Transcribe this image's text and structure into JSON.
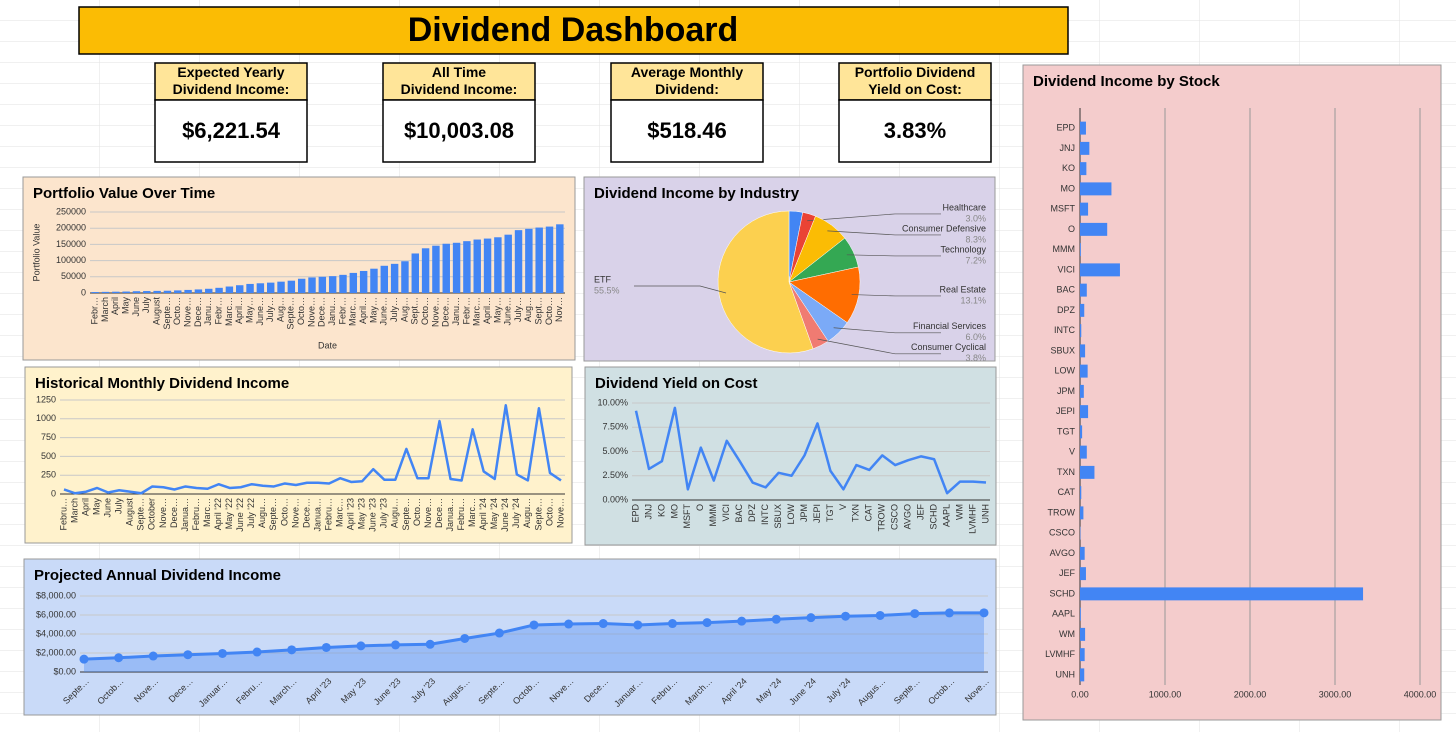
{
  "title": "Dividend Dashboard",
  "kpis": [
    {
      "label": "Expected Yearly Dividend Income:",
      "value": "$6,221.54"
    },
    {
      "label": "All Time Dividend Income:",
      "value": "$10,003.08"
    },
    {
      "label": "Average Monthly Dividend:",
      "value": "$518.46"
    },
    {
      "label": "Portfolio Dividend Yield on Cost:",
      "value": "3.83%"
    }
  ],
  "chart_data": [
    {
      "type": "bar",
      "title": "Portfolio Value Over Time",
      "ylabel": "Portfolio Value",
      "xlabel": "Date",
      "color": "#4285f4",
      "grid": true,
      "categories": [
        "Febr…",
        "March",
        "April",
        "May",
        "June",
        "July",
        "August",
        "Septe…",
        "Octo…",
        "Nove…",
        "Dece…",
        "Janu…",
        "Febr…",
        "Marc…",
        "April…",
        "May…",
        "June…",
        "July…",
        "Aug…",
        "Septe…",
        "Octo…",
        "Nove…",
        "Dece…",
        "Janu…",
        "Febr…",
        "Marc…",
        "April…",
        "May…",
        "June…",
        "July…",
        "Aug…",
        "Sept…",
        "Octo…",
        "Nove…",
        "Dece…",
        "Janu…",
        "Febr…",
        "Marc…",
        "April…",
        "May…",
        "June…",
        "July…",
        "Aug…",
        "Sept…",
        "Octo…",
        "Nov…"
      ],
      "values": [
        3000,
        3500,
        4000,
        4500,
        5500,
        6000,
        6500,
        7000,
        8000,
        9500,
        11000,
        13000,
        16000,
        20000,
        24000,
        28000,
        30000,
        32000,
        35000,
        38000,
        44000,
        48000,
        50000,
        52000,
        56000,
        62000,
        68000,
        75000,
        84000,
        90000,
        98000,
        122000,
        138000,
        146000,
        152000,
        155000,
        160000,
        165000,
        168000,
        172000,
        180000,
        194000,
        198000,
        202000,
        205000,
        212000
      ],
      "ylim": [
        0,
        250000
      ],
      "yticks": [
        0,
        50000,
        100000,
        150000,
        200000,
        250000
      ]
    },
    {
      "type": "pie",
      "title": "Dividend Income by Industry",
      "categories": [
        null,
        "Healthcare",
        "Consumer Defensive",
        "Technology",
        "Real Estate",
        "Financial Services",
        "Consumer Cyclical",
        "ETF"
      ],
      "values": [
        3.1,
        3,
        8.3,
        7.2,
        13.1,
        6,
        3.8,
        55.5
      ],
      "value_labels": [
        null,
        "3.0%",
        "8.3%",
        "7.2%",
        "13.1%",
        "6.0%",
        "3.8%",
        "55.5%"
      ],
      "colors": [
        "#4285f4",
        "#ea4335",
        "#fbbc04",
        "#34a853",
        "#ff6d01",
        "#7baaf7",
        "#f07b72",
        "#fcd04f"
      ]
    },
    {
      "type": "line",
      "title": "Historical Monthly Dividend Income",
      "color": "#4285f4",
      "grid": true,
      "categories": [
        "Febru…",
        "March",
        "April",
        "May",
        "June",
        "July",
        "August",
        "Septe…",
        "October",
        "Nove…",
        "Dece…",
        "Janua…",
        "Febru…",
        "Marc…",
        "April '22",
        "May '22",
        "June '22",
        "July '22",
        "Augu…",
        "Septe…",
        "Octo…",
        "Nove…",
        "Dece…",
        "Janua…",
        "Febru…",
        "Marc…",
        "April '23",
        "May '23",
        "June '23",
        "July '23",
        "Augu…",
        "Septe…",
        "Octo…",
        "Nove…",
        "Dece…",
        "Janua…",
        "Febru…",
        "Marc…",
        "April '24",
        "May '24",
        "June '24",
        "July '24",
        "Augu…",
        "Septe…",
        "Octo…",
        "Nove…"
      ],
      "values": [
        60,
        10,
        30,
        80,
        20,
        50,
        30,
        10,
        100,
        90,
        60,
        100,
        80,
        70,
        130,
        80,
        90,
        130,
        110,
        100,
        140,
        120,
        150,
        150,
        140,
        210,
        160,
        170,
        330,
        190,
        190,
        600,
        210,
        210,
        970,
        200,
        180,
        860,
        300,
        200,
        1180,
        260,
        180,
        1140,
        280,
        180
      ],
      "ylim": [
        0,
        1250
      ],
      "yticks": [
        0,
        250,
        500,
        750,
        1000,
        1250
      ]
    },
    {
      "type": "line",
      "title": "Dividend Yield on Cost",
      "color": "#4285f4",
      "grid": true,
      "categories": [
        "EPD",
        "JNJ",
        "KO",
        "MO",
        "MSFT",
        "O",
        "MMM",
        "VICI",
        "BAC",
        "DPZ",
        "INTC",
        "SBUX",
        "LOW",
        "JPM",
        "JEPI",
        "TGT",
        "V",
        "TXN",
        "CAT",
        "TROW",
        "CSCO",
        "AVGO",
        "JEF",
        "SCHD",
        "AAPL",
        "WM",
        "LVMHF",
        "UNH"
      ],
      "values": [
        9.2,
        3.2,
        4,
        9.5,
        1.1,
        5.4,
        2,
        6.1,
        4,
        1.8,
        1.3,
        2.8,
        2.5,
        4.6,
        7.9,
        3,
        1.1,
        3.6,
        3.1,
        4.6,
        3.6,
        4.1,
        4.5,
        4.2,
        0.7,
        1.9,
        1.9,
        1.8
      ],
      "ylim": [
        0,
        10
      ],
      "yticks": [
        {
          "value": 0,
          "label": "0.00%"
        },
        {
          "value": 2.5,
          "label": "2.50%"
        },
        {
          "value": 5,
          "label": "5.00%"
        },
        {
          "value": 7.5,
          "label": "7.50%"
        },
        {
          "value": 10,
          "label": "10.00%"
        }
      ]
    },
    {
      "type": "area",
      "title": "Projected Annual Dividend Income",
      "color": "#4285f4",
      "grid": true,
      "categories": [
        "Septe…",
        "Octob…",
        "Nove…",
        "Dece…",
        "Januar…",
        "Febru…",
        "March…",
        "April '23",
        "May '23",
        "June '23",
        "July '23",
        "Augus…",
        "Septe…",
        "Octob…",
        "Nove…",
        "Dece…",
        "Januar…",
        "Febru…",
        "March…",
        "April '24",
        "May '24",
        "June '24",
        "July '24",
        "Augus…",
        "Septe…",
        "Octob…",
        "Nove…"
      ],
      "values": [
        1350,
        1500,
        1680,
        1820,
        1950,
        2100,
        2330,
        2580,
        2750,
        2850,
        2920,
        3530,
        4100,
        4950,
        5050,
        5100,
        4950,
        5100,
        5200,
        5350,
        5550,
        5720,
        5870,
        5950,
        6150,
        6220,
        6230
      ],
      "ylim": [
        0,
        8000
      ],
      "yticks": [
        {
          "value": 0,
          "label": "$0.00"
        },
        {
          "value": 2000,
          "label": "$2,000.00"
        },
        {
          "value": 4000,
          "label": "$4,000.00"
        },
        {
          "value": 6000,
          "label": "$6,000.00"
        },
        {
          "value": 8000,
          "label": "$8,000.00"
        }
      ]
    },
    {
      "type": "bar",
      "horizontal": true,
      "title": "Dividend Income by Stock",
      "color": "#4285f4",
      "grid": true,
      "categories": [
        "EPD",
        "JNJ",
        "KO",
        "MO",
        "MSFT",
        "O",
        "MMM",
        "VICI",
        "BAC",
        "DPZ",
        "INTC",
        "SBUX",
        "LOW",
        "JPM",
        "JEPI",
        "TGT",
        "V",
        "TXN",
        "CAT",
        "TROW",
        "CSCO",
        "AVGO",
        "JEF",
        "SCHD",
        "AAPL",
        "WM",
        "LVMHF",
        "UNH"
      ],
      "values": [
        70,
        110,
        75,
        370,
        95,
        320,
        10,
        470,
        80,
        50,
        15,
        60,
        90,
        45,
        95,
        25,
        80,
        170,
        15,
        40,
        5,
        55,
        70,
        3330,
        10,
        60,
        55,
        50
      ],
      "xlim": [
        0,
        4000
      ],
      "xticks": [
        {
          "value": 0,
          "label": "0.00"
        },
        {
          "value": 1000,
          "label": "1000.00"
        },
        {
          "value": 2000,
          "label": "2000.00"
        },
        {
          "value": 3000,
          "label": "3000.00"
        },
        {
          "value": 4000,
          "label": "4000.00"
        }
      ]
    }
  ]
}
